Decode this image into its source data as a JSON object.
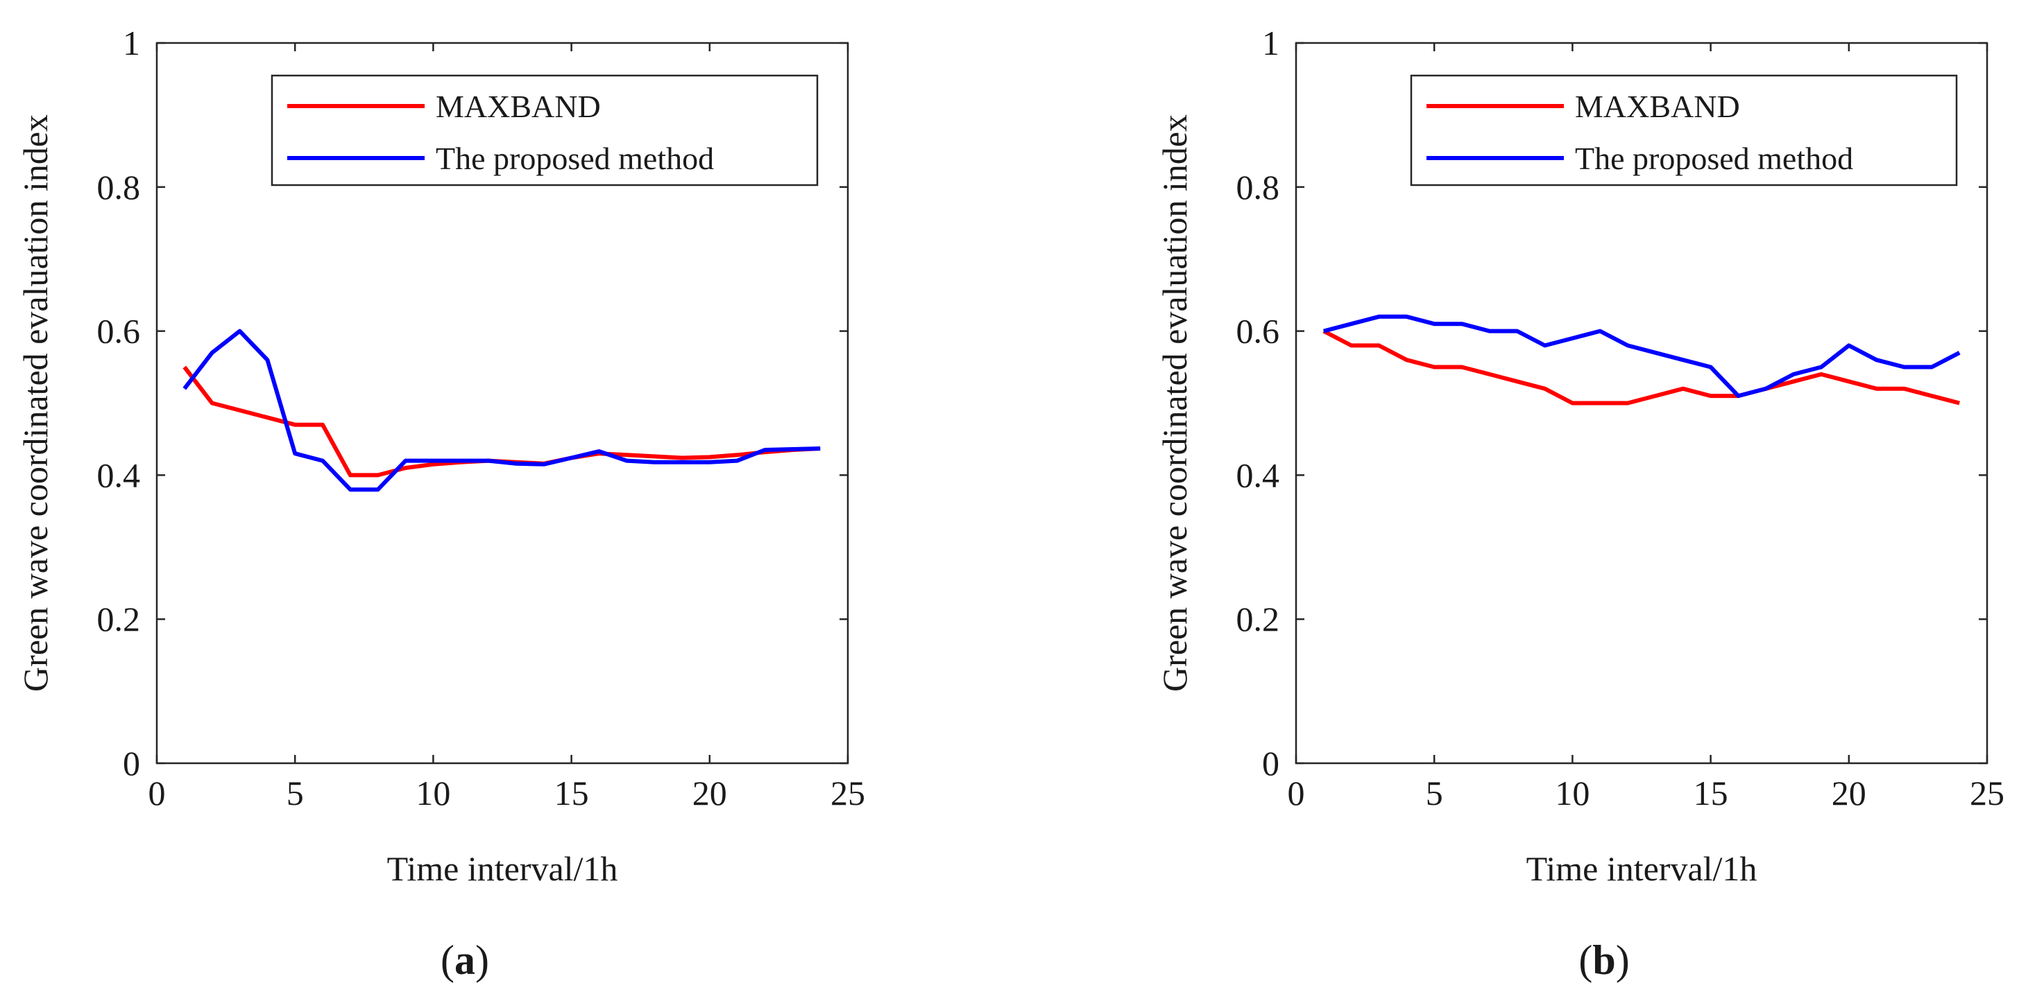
{
  "chart_data": [
    {
      "type": "line",
      "panel_label": "a",
      "xlabel": "Time interval/1h",
      "ylabel": "Green wave coordinated evaluation index",
      "xlim": [
        0,
        25
      ],
      "ylim": [
        0,
        1
      ],
      "xticks": [
        0,
        5,
        10,
        15,
        20,
        25
      ],
      "yticks": [
        0,
        0.2,
        0.4,
        0.6,
        0.8,
        1
      ],
      "ytick_labels": [
        "0",
        "0.2",
        "0.4",
        "0.6",
        "0.8",
        "1"
      ],
      "legend_position": "top-right",
      "series": [
        {
          "name": "MAXBAND",
          "color": "#ff0000",
          "x": [
            1,
            2,
            3,
            4,
            5,
            6,
            7,
            8,
            9,
            10,
            11,
            12,
            13,
            14,
            15,
            16,
            17,
            18,
            19,
            20,
            21,
            22,
            23,
            24
          ],
          "values": [
            0.55,
            0.5,
            0.49,
            0.48,
            0.47,
            0.47,
            0.4,
            0.4,
            0.41,
            0.415,
            0.418,
            0.42,
            0.418,
            0.416,
            0.424,
            0.43,
            0.428,
            0.426,
            0.424,
            0.425,
            0.428,
            0.432,
            0.435,
            0.437
          ]
        },
        {
          "name": "The proposed method",
          "color": "#0000ff",
          "x": [
            1,
            2,
            3,
            4,
            5,
            6,
            7,
            8,
            9,
            10,
            11,
            12,
            13,
            14,
            15,
            16,
            17,
            18,
            19,
            20,
            21,
            22,
            23,
            24
          ],
          "values": [
            0.52,
            0.57,
            0.6,
            0.56,
            0.43,
            0.42,
            0.38,
            0.38,
            0.42,
            0.42,
            0.42,
            0.42,
            0.416,
            0.415,
            0.424,
            0.433,
            0.42,
            0.418,
            0.418,
            0.418,
            0.42,
            0.435,
            0.436,
            0.437
          ]
        }
      ]
    },
    {
      "type": "line",
      "panel_label": "b",
      "xlabel": "Time interval/1h",
      "ylabel": "Green wave coordinated evaluation index",
      "xlim": [
        0,
        25
      ],
      "ylim": [
        0,
        1
      ],
      "xticks": [
        0,
        5,
        10,
        15,
        20,
        25
      ],
      "yticks": [
        0,
        0.2,
        0.4,
        0.6,
        0.8,
        1
      ],
      "ytick_labels": [
        "0",
        "0.2",
        "0.4",
        "0.6",
        "0.8",
        "1"
      ],
      "legend_position": "top-right",
      "series": [
        {
          "name": "MAXBAND",
          "color": "#ff0000",
          "x": [
            1,
            2,
            3,
            4,
            5,
            6,
            7,
            8,
            9,
            10,
            11,
            12,
            13,
            14,
            15,
            16,
            17,
            18,
            19,
            20,
            21,
            22,
            23,
            24
          ],
          "values": [
            0.6,
            0.58,
            0.58,
            0.56,
            0.55,
            0.55,
            0.54,
            0.53,
            0.52,
            0.5,
            0.5,
            0.5,
            0.51,
            0.52,
            0.51,
            0.51,
            0.52,
            0.53,
            0.54,
            0.53,
            0.52,
            0.52,
            0.51,
            0.5
          ]
        },
        {
          "name": "The proposed method",
          "color": "#0000ff",
          "x": [
            1,
            2,
            3,
            4,
            5,
            6,
            7,
            8,
            9,
            10,
            11,
            12,
            13,
            14,
            15,
            16,
            17,
            18,
            19,
            20,
            21,
            22,
            23,
            24
          ],
          "values": [
            0.6,
            0.61,
            0.62,
            0.62,
            0.61,
            0.61,
            0.6,
            0.6,
            0.58,
            0.59,
            0.6,
            0.58,
            0.57,
            0.56,
            0.55,
            0.51,
            0.52,
            0.54,
            0.55,
            0.58,
            0.56,
            0.55,
            0.55,
            0.57
          ]
        }
      ]
    }
  ]
}
